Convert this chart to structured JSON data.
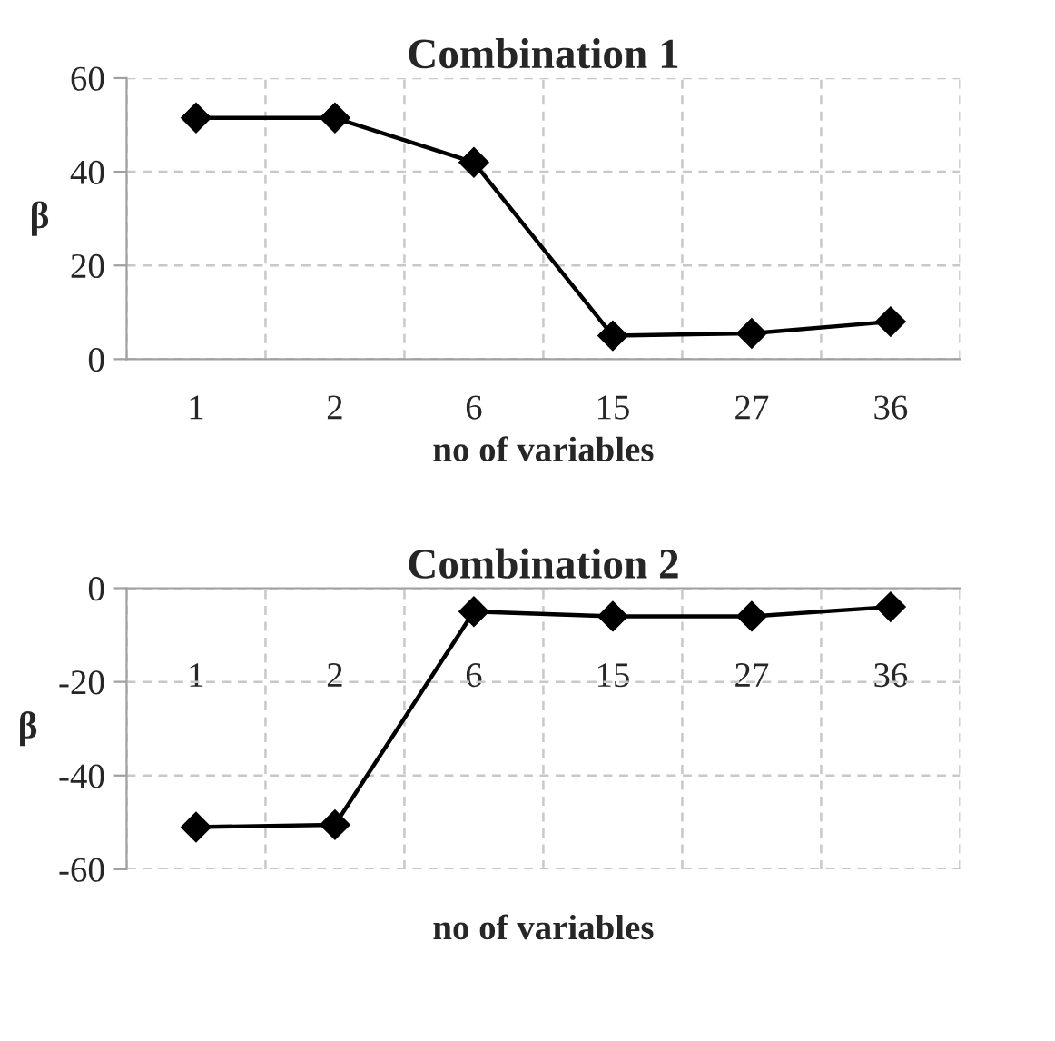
{
  "chart_data": [
    {
      "type": "line",
      "title": "Combination 1",
      "xlabel": "no of variables",
      "ylabel": "β",
      "categories": [
        "1",
        "2",
        "6",
        "15",
        "27",
        "36"
      ],
      "series": [
        {
          "color": "#000000",
          "values": [
            51.5,
            51.5,
            42,
            5,
            5.5,
            8
          ]
        }
      ],
      "ylim": [
        0,
        60
      ],
      "yticks": [
        0,
        20,
        40,
        60
      ],
      "grid": true,
      "marker": "diamond",
      "line_style": "solid",
      "legend": false
    },
    {
      "type": "line",
      "title": "Combination 2",
      "xlabel": "no of variables",
      "ylabel": "β",
      "categories": [
        "1",
        "2",
        "6",
        "15",
        "27",
        "36"
      ],
      "series": [
        {
          "color": "#000000",
          "values": [
            -51,
            -50.5,
            -5,
            -6,
            -6,
            -4
          ]
        }
      ],
      "ylim": [
        -60,
        0
      ],
      "yticks": [
        -60,
        -40,
        -20,
        0
      ],
      "grid": true,
      "marker": "diamond",
      "line_style": "solid",
      "legend": false
    }
  ]
}
